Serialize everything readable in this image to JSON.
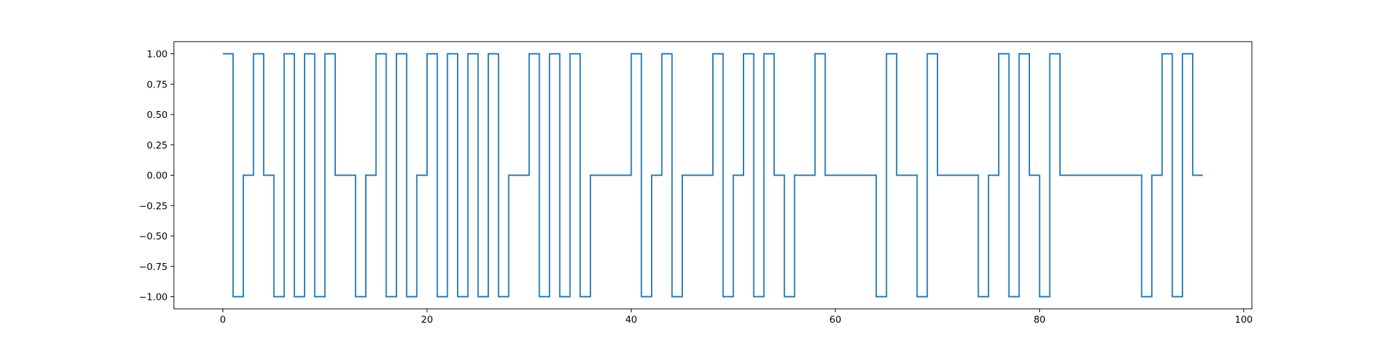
{
  "chart_data": {
    "type": "line",
    "drawstyle": "steps-post",
    "title": "",
    "xlabel": "",
    "ylabel": "",
    "xlim": [
      -4.8,
      100.8
    ],
    "ylim": [
      -1.1,
      1.1
    ],
    "xticks": [
      0,
      20,
      40,
      60,
      80,
      100
    ],
    "yticks": [
      1.0,
      0.75,
      0.5,
      0.25,
      0.0,
      -0.25,
      -0.5,
      -0.75,
      -1.0
    ],
    "xtick_labels": [
      "0",
      "20",
      "40",
      "60",
      "80",
      "100"
    ],
    "ytick_labels": [
      "1.00",
      "0.75",
      "0.50",
      "0.25",
      "0.00",
      "−0.25",
      "−0.50",
      "−0.75",
      "−1.00"
    ],
    "grid": false,
    "legend": "none",
    "line_color": "#1f77b4",
    "series": [
      {
        "x": [
          0,
          1,
          2,
          3,
          4,
          5,
          6,
          7,
          8,
          9,
          10,
          11,
          12,
          13,
          14,
          15,
          16,
          17,
          18,
          19,
          20,
          21,
          22,
          23,
          24,
          25,
          26,
          27,
          28,
          29,
          30,
          31,
          32,
          33,
          34,
          35,
          36,
          37,
          38,
          39,
          40,
          41,
          42,
          43,
          44,
          45,
          46,
          47,
          48,
          49,
          50,
          51,
          52,
          53,
          54,
          55,
          56,
          57,
          58,
          59,
          60,
          61,
          62,
          63,
          64,
          65,
          66,
          67,
          68,
          69,
          70,
          71,
          72,
          73,
          74,
          75,
          76,
          77,
          78,
          79,
          80,
          81,
          82,
          83,
          84,
          85,
          86,
          87,
          88,
          89,
          90,
          91,
          92,
          93,
          94,
          95,
          96
        ],
        "y": [
          1,
          -1,
          0,
          1,
          0,
          -1,
          1,
          -1,
          1,
          -1,
          1,
          0,
          0,
          -1,
          0,
          1,
          -1,
          1,
          -1,
          0,
          1,
          -1,
          1,
          -1,
          1,
          -1,
          1,
          -1,
          0,
          0,
          1,
          -1,
          1,
          -1,
          1,
          -1,
          0,
          0,
          0,
          0,
          1,
          -1,
          0,
          1,
          -1,
          0,
          0,
          0,
          1,
          -1,
          0,
          1,
          -1,
          1,
          0,
          -1,
          0,
          0,
          1,
          0,
          0,
          0,
          0,
          0,
          -1,
          1,
          0,
          0,
          -1,
          1,
          0,
          0,
          0,
          0,
          -1,
          0,
          1,
          -1,
          1,
          0,
          -1,
          1,
          0,
          0,
          0,
          0,
          0,
          0,
          0,
          0,
          -1,
          0,
          1,
          -1,
          1,
          0,
          0
        ]
      }
    ]
  }
}
